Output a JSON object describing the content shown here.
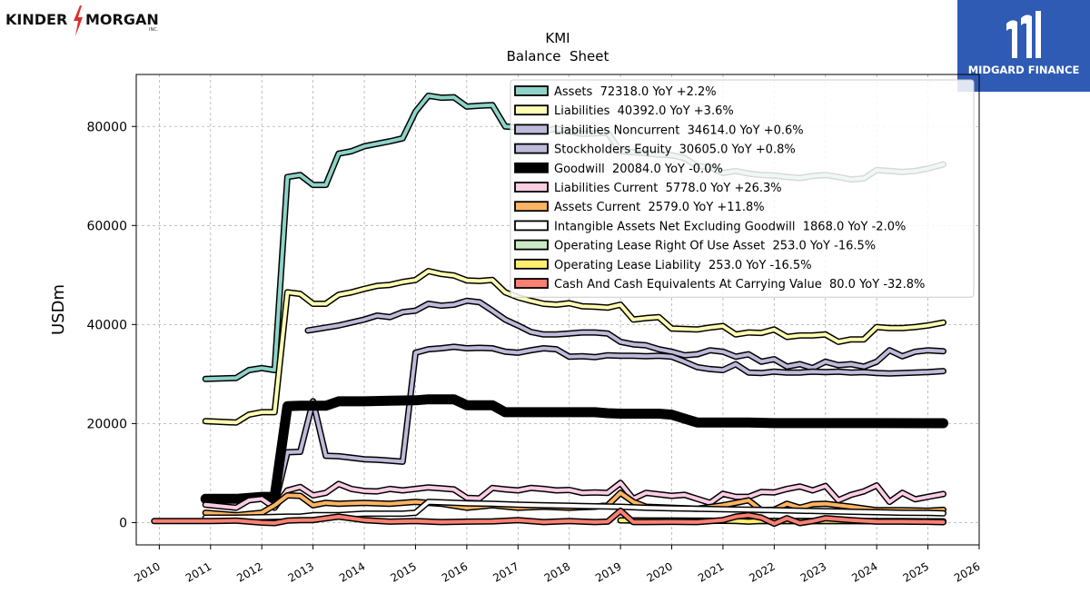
{
  "logos": {
    "left_text_1": "KINDER",
    "left_text_2": "MORGAN",
    "left_inc": "INC.",
    "right_brand": "MIDGARD FINANCE"
  },
  "chart_data": {
    "type": "line",
    "title": "KMI",
    "subtitle": "Balance  Sheet",
    "xlabel": "",
    "ylabel": "USDm",
    "xlim": [
      2009.55,
      2026.0
    ],
    "ylim": [
      -4500,
      90500
    ],
    "xticks": [
      "2010",
      "2011",
      "2012",
      "2013",
      "2014",
      "2015",
      "2016",
      "2017",
      "2018",
      "2019",
      "2020",
      "2021",
      "2022",
      "2023",
      "2024",
      "2025",
      "2026"
    ],
    "yticks": [
      "0",
      "20000",
      "40000",
      "60000",
      "80000"
    ],
    "grid": true,
    "legend_position": "top-right",
    "series": [
      {
        "name": "Assets  72318.0 YoY +2.2%",
        "color": "#8dd3c7",
        "lw": 4,
        "x": [
          2010.9,
          2011.5,
          2011.75,
          2012.0,
          2012.25,
          2012.5,
          2012.75,
          2013.0,
          2013.25,
          2013.5,
          2013.75,
          2014.0,
          2014.25,
          2014.5,
          2014.75,
          2015.0,
          2015.25,
          2015.5,
          2015.75,
          2016.0,
          2016.25,
          2016.5,
          2016.75,
          2017.0,
          2017.25,
          2017.5,
          2017.75,
          2018.0,
          2018.25,
          2018.5,
          2018.75,
          2019.0,
          2019.25,
          2019.5,
          2019.75,
          2020.0,
          2020.25,
          2020.5,
          2020.75,
          2021.0,
          2021.25,
          2021.5,
          2021.75,
          2022.0,
          2022.25,
          2022.5,
          2022.75,
          2023.0,
          2023.25,
          2023.5,
          2023.75,
          2024.0,
          2024.25,
          2024.5,
          2024.75,
          2025.0,
          2025.3
        ],
        "y": [
          29000,
          29200,
          30800,
          31200,
          30800,
          69800,
          70200,
          68200,
          68200,
          74500,
          75000,
          76000,
          76500,
          77000,
          77600,
          83000,
          86200,
          85800,
          85900,
          84000,
          84200,
          84300,
          80000,
          79800,
          79500,
          79000,
          79600,
          79000,
          78500,
          78600,
          78700,
          75000,
          74800,
          74600,
          74300,
          74200,
          73600,
          72000,
          71800,
          70600,
          71000,
          70500,
          70200,
          70100,
          69800,
          69600,
          70000,
          70200,
          69800,
          69300,
          69500,
          71200,
          71000,
          70800,
          71000,
          71500,
          72318
        ]
      },
      {
        "name": "Liabilities  40392.0 YoY +3.6%",
        "color": "#ffffb3",
        "lw": 4,
        "x": [
          2010.9,
          2011.5,
          2011.75,
          2012.0,
          2012.25,
          2012.5,
          2012.75,
          2013.0,
          2013.25,
          2013.5,
          2013.75,
          2014.0,
          2014.25,
          2014.5,
          2014.75,
          2015.0,
          2015.25,
          2015.5,
          2015.75,
          2016.0,
          2016.25,
          2016.5,
          2016.75,
          2017.0,
          2017.25,
          2017.5,
          2017.75,
          2018.0,
          2018.25,
          2018.5,
          2018.75,
          2019.0,
          2019.25,
          2019.5,
          2019.75,
          2020.0,
          2020.25,
          2020.5,
          2020.75,
          2021.0,
          2021.25,
          2021.5,
          2021.75,
          2022.0,
          2022.25,
          2022.5,
          2022.75,
          2023.0,
          2023.25,
          2023.5,
          2023.75,
          2024.0,
          2024.25,
          2024.5,
          2024.75,
          2025.0,
          2025.3
        ],
        "y": [
          20500,
          20200,
          21800,
          22300,
          22300,
          46500,
          46200,
          44200,
          44200,
          46000,
          46500,
          47200,
          47800,
          48000,
          48600,
          49000,
          50800,
          50200,
          49900,
          48900,
          48800,
          49000,
          46500,
          45500,
          44800,
          44200,
          44000,
          44300,
          43700,
          43600,
          43400,
          44000,
          41000,
          41300,
          41500,
          39200,
          39100,
          39000,
          39400,
          39700,
          38000,
          38400,
          38300,
          39000,
          37500,
          37800,
          37800,
          38000,
          36500,
          37000,
          37000,
          39500,
          39300,
          39300,
          39500,
          39800,
          40392
        ]
      },
      {
        "name": "Liabilities Noncurrent  34614.0 YoY +0.6%",
        "color": "#bebada",
        "lw": 4,
        "x": [
          2012.9,
          2013.5,
          2014.0,
          2014.25,
          2014.5,
          2014.75,
          2015.0,
          2015.25,
          2015.5,
          2015.75,
          2016.0,
          2016.25,
          2016.5,
          2016.75,
          2017.0,
          2017.25,
          2017.5,
          2017.75,
          2018.0,
          2018.25,
          2018.5,
          2018.75,
          2019.0,
          2019.25,
          2019.5,
          2019.75,
          2020.0,
          2020.25,
          2020.5,
          2020.75,
          2021.0,
          2021.25,
          2021.5,
          2021.75,
          2022.0,
          2022.25,
          2022.5,
          2022.75,
          2023.0,
          2023.25,
          2023.5,
          2023.75,
          2024.0,
          2024.25,
          2024.5,
          2024.75,
          2025.0,
          2025.3
        ],
        "y": [
          38800,
          39800,
          41000,
          41800,
          41500,
          42500,
          42800,
          44200,
          43800,
          44000,
          44800,
          44500,
          42800,
          41000,
          39800,
          38500,
          38000,
          38000,
          38200,
          38400,
          38400,
          38200,
          36500,
          36000,
          35800,
          35000,
          34500,
          33800,
          34000,
          34800,
          34500,
          33500,
          34000,
          32500,
          33000,
          31500,
          32000,
          31200,
          32500,
          31800,
          32000,
          31500,
          32500,
          34800,
          33600,
          34500,
          34800,
          34614
        ]
      },
      {
        "name": "Stockholders Equity  30605.0 YoY +0.8%",
        "color": "#bebada",
        "lw": 4,
        "x": [
          2012.25,
          2012.5,
          2012.75,
          2013.0,
          2013.25,
          2013.5,
          2013.75,
          2014.0,
          2014.25,
          2014.5,
          2014.75,
          2015.0,
          2015.25,
          2015.5,
          2015.75,
          2016.0,
          2016.25,
          2016.5,
          2016.75,
          2017.0,
          2017.25,
          2017.5,
          2017.75,
          2018.0,
          2018.25,
          2018.5,
          2018.75,
          2019.0,
          2019.25,
          2019.5,
          2019.75,
          2020.0,
          2020.25,
          2020.5,
          2020.75,
          2021.0,
          2021.25,
          2021.5,
          2021.75,
          2022.0,
          2022.25,
          2022.5,
          2022.75,
          2023.0,
          2023.25,
          2023.5,
          2023.75,
          2024.0,
          2024.25,
          2024.5,
          2024.75,
          2025.0,
          2025.3
        ],
        "y": [
          3500,
          14200,
          14300,
          24500,
          13500,
          13400,
          13100,
          12800,
          12700,
          12500,
          12300,
          34300,
          35000,
          35200,
          35500,
          35200,
          35300,
          35200,
          34500,
          34300,
          34800,
          35200,
          35000,
          33500,
          33600,
          33400,
          33800,
          33700,
          33700,
          33600,
          33700,
          33500,
          32500,
          31400,
          31000,
          30800,
          32000,
          30300,
          30200,
          30500,
          30300,
          30300,
          30500,
          30400,
          30500,
          30300,
          30400,
          30200,
          30100,
          30200,
          30300,
          30400,
          30605
        ]
      },
      {
        "name": "Goodwill  20084.0 YoY -0.0%",
        "color": "#000000",
        "lw": 8,
        "x": [
          2010.9,
          2011.5,
          2012.0,
          2012.25,
          2012.5,
          2012.75,
          2013.0,
          2013.25,
          2013.5,
          2014.0,
          2014.5,
          2015.0,
          2015.25,
          2015.5,
          2015.75,
          2016.0,
          2016.5,
          2016.75,
          2017.0,
          2017.5,
          2018.0,
          2018.5,
          2018.75,
          2019.0,
          2019.5,
          2019.75,
          2020.0,
          2020.25,
          2020.5,
          2021.0,
          2021.5,
          2022.0,
          2022.5,
          2023.0,
          2024.0,
          2025.3
        ],
        "y": [
          4800,
          4800,
          5200,
          5200,
          23500,
          23600,
          23600,
          23600,
          24500,
          24500,
          24600,
          24700,
          24900,
          24900,
          24900,
          23700,
          23700,
          22300,
          22300,
          22300,
          22300,
          22300,
          22100,
          22000,
          22000,
          22000,
          21800,
          21000,
          20200,
          20200,
          20200,
          20100,
          20100,
          20100,
          20100,
          20084
        ]
      },
      {
        "name": "Liabilities Current  5778.0 YoY +26.3%",
        "color": "#fccde5",
        "lw": 4,
        "x": [
          2010.9,
          2011.5,
          2011.75,
          2012.0,
          2012.25,
          2012.5,
          2012.75,
          2013.0,
          2013.25,
          2013.5,
          2013.75,
          2014.0,
          2014.25,
          2014.5,
          2014.75,
          2015.0,
          2015.25,
          2015.5,
          2015.75,
          2016.0,
          2016.25,
          2016.5,
          2016.75,
          2017.0,
          2017.25,
          2017.5,
          2017.75,
          2018.0,
          2018.25,
          2018.5,
          2018.75,
          2019.0,
          2019.25,
          2019.5,
          2019.75,
          2020.0,
          2020.25,
          2020.5,
          2020.75,
          2021.0,
          2021.25,
          2021.5,
          2021.75,
          2022.0,
          2022.25,
          2022.5,
          2022.75,
          2023.0,
          2023.25,
          2023.5,
          2023.75,
          2024.0,
          2024.25,
          2024.5,
          2024.75,
          2025.0,
          2025.3
        ],
        "y": [
          3600,
          3000,
          4500,
          4800,
          3000,
          6500,
          7200,
          5500,
          6000,
          7800,
          6800,
          6400,
          6300,
          6800,
          6500,
          6800,
          7100,
          6900,
          6700,
          5000,
          4900,
          7000,
          6700,
          6500,
          7000,
          6800,
          6500,
          6600,
          6000,
          6100,
          6000,
          8000,
          4800,
          6000,
          5700,
          5400,
          5600,
          4800,
          4000,
          5800,
          5200,
          5200,
          6200,
          6100,
          6800,
          7300,
          6500,
          7400,
          4500,
          5600,
          6300,
          7500,
          4200,
          6000,
          4700,
          5200,
          5778
        ]
      },
      {
        "name": "Assets Current  2579.0 YoY +11.8%",
        "color": "#fdb462",
        "lw": 4,
        "x": [
          2010.9,
          2011.5,
          2012.0,
          2012.25,
          2012.5,
          2012.75,
          2013.0,
          2013.25,
          2013.5,
          2014.0,
          2014.5,
          2015.0,
          2015.5,
          2016.0,
          2016.5,
          2017.0,
          2017.5,
          2018.0,
          2018.5,
          2018.75,
          2019.0,
          2019.25,
          2019.5,
          2020.0,
          2020.5,
          2021.0,
          2021.25,
          2021.5,
          2021.75,
          2022.0,
          2022.25,
          2022.5,
          2022.75,
          2023.0,
          2023.5,
          2024.0,
          2024.5,
          2025.0,
          2025.3
        ],
        "y": [
          2000,
          1500,
          2000,
          3500,
          5500,
          5400,
          3500,
          4000,
          3800,
          4000,
          3800,
          4200,
          3800,
          3000,
          3500,
          3000,
          3200,
          3000,
          3200,
          3500,
          6000,
          4200,
          3200,
          3000,
          2800,
          3500,
          4000,
          4500,
          2500,
          2600,
          3800,
          3000,
          3700,
          3800,
          3200,
          2500,
          2500,
          2400,
          2579
        ]
      },
      {
        "name": "Intangible Assets Net Excluding Goodwill  1868.0 YoY -2.0%",
        "color": "#ffffff",
        "lw": 4,
        "x": [
          2010.9,
          2011.5,
          2012.0,
          2012.5,
          2012.75,
          2013.0,
          2013.5,
          2014.0,
          2014.5,
          2014.75,
          2015.0,
          2015.25,
          2015.5,
          2016.0,
          2016.5,
          2017.0,
          2017.5,
          2018.0,
          2018.5,
          2019.0,
          2019.5,
          2020.0,
          2020.5,
          2021.0,
          2021.5,
          2022.0,
          2022.5,
          2023.0,
          2023.5,
          2024.0,
          2024.5,
          2025.0,
          2025.3
        ],
        "y": [
          1000,
          1000,
          1100,
          1200,
          1200,
          1500,
          1500,
          1800,
          1800,
          1800,
          2000,
          4200,
          4100,
          3900,
          3800,
          3600,
          3500,
          3400,
          3300,
          3200,
          3000,
          2900,
          2800,
          2700,
          2600,
          2500,
          2400,
          2300,
          2200,
          2100,
          2000,
          1950,
          1868
        ]
      },
      {
        "name": "Operating Lease Right Of Use Asset  253.0 YoY -16.5%",
        "color": "#ccebc5",
        "lw": 4,
        "x": [
          2019.0,
          2019.5,
          2020.0,
          2020.5,
          2021.0,
          2021.5,
          2022.0,
          2022.5,
          2023.0,
          2023.5,
          2024.0,
          2024.5,
          2025.0,
          2025.3
        ],
        "y": [
          450,
          420,
          400,
          380,
          360,
          340,
          330,
          320,
          310,
          300,
          290,
          280,
          270,
          253
        ]
      },
      {
        "name": "Operating Lease Liability  253.0 YoY -16.5%",
        "color": "#ffed6f",
        "lw": 4,
        "x": [
          2019.0,
          2019.5,
          2020.0,
          2020.5,
          2021.0,
          2021.25,
          2021.5,
          2021.75,
          2022.0,
          2022.5,
          2023.0,
          2023.5,
          2024.0,
          2024.5,
          2025.0,
          2025.3
        ],
        "y": [
          450,
          420,
          400,
          380,
          360,
          350,
          200,
          340,
          330,
          320,
          310,
          300,
          290,
          280,
          270,
          253
        ]
      },
      {
        "name": "Cash And Cash Equivalents At Carrying Value  80.0 YoY -32.8%",
        "color": "#fb8072",
        "lw": 4,
        "x": [
          2009.9,
          2010.5,
          2011.0,
          2011.5,
          2011.75,
          2012.0,
          2012.25,
          2012.5,
          2012.75,
          2013.0,
          2013.5,
          2014.0,
          2014.5,
          2015.0,
          2015.5,
          2016.0,
          2016.5,
          2017.0,
          2017.5,
          2018.0,
          2018.5,
          2018.75,
          2019.0,
          2019.25,
          2019.5,
          2020.0,
          2020.5,
          2021.0,
          2021.25,
          2021.5,
          2021.75,
          2022.0,
          2022.25,
          2022.5,
          2022.75,
          2023.0,
          2023.5,
          2024.0,
          2024.5,
          2025.0,
          2025.3
        ],
        "y": [
          300,
          300,
          300,
          400,
          200,
          0,
          -100,
          400,
          500,
          500,
          1200,
          500,
          200,
          300,
          100,
          200,
          250,
          500,
          100,
          300,
          100,
          200,
          2400,
          100,
          100,
          150,
          100,
          500,
          1200,
          1500,
          1000,
          -200,
          900,
          -100,
          300,
          900,
          500,
          200,
          200,
          150,
          80
        ]
      }
    ]
  }
}
